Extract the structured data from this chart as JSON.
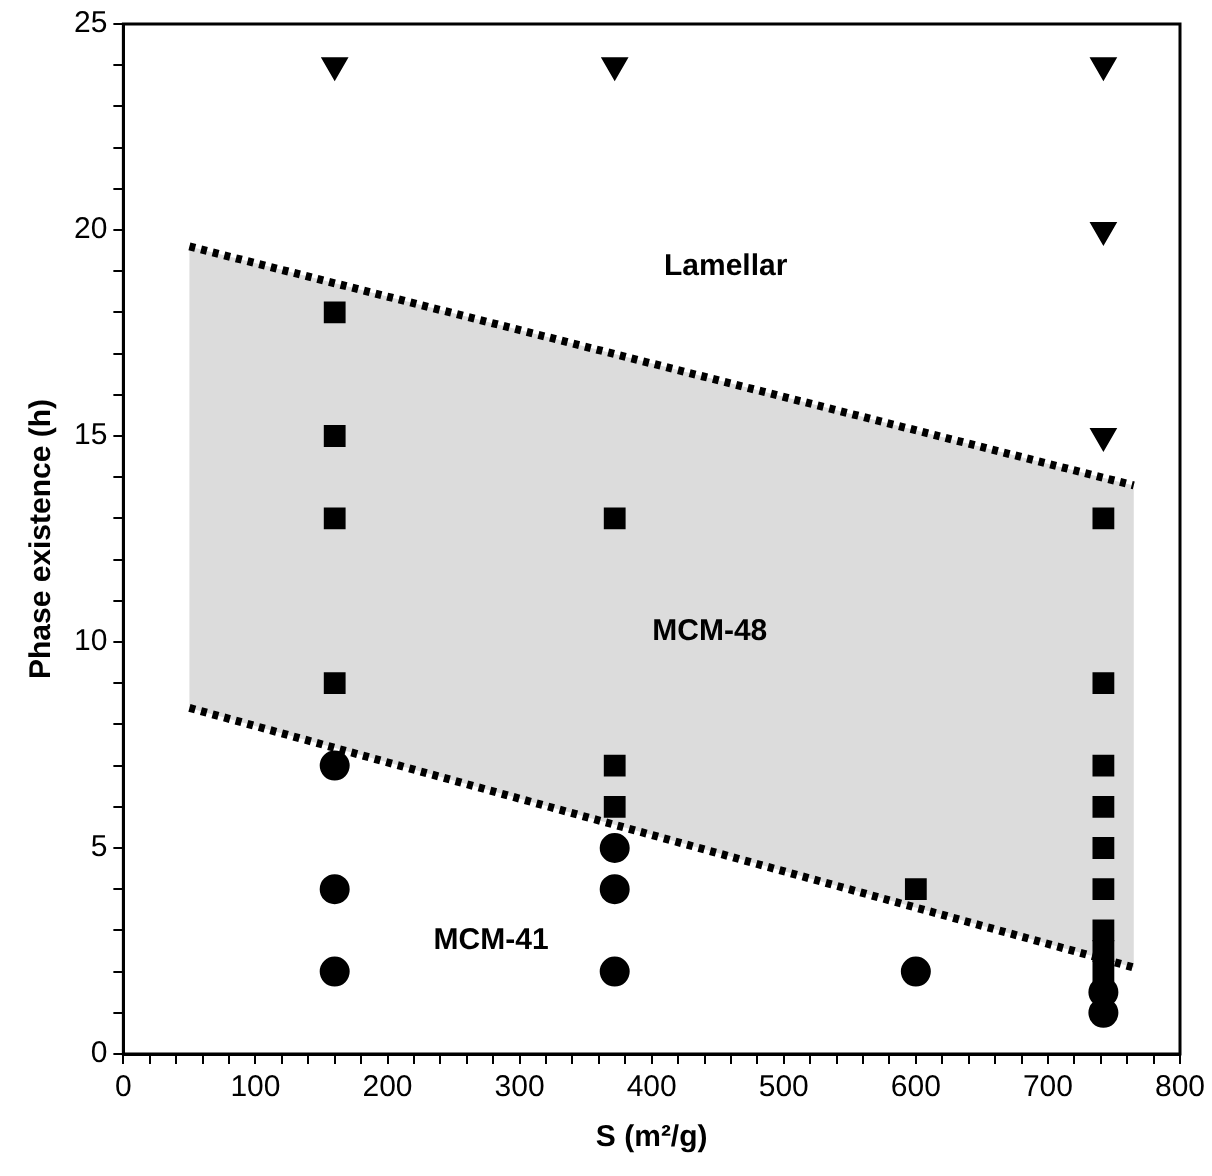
{
  "chart_data": {
    "type": "scatter",
    "xlabel": "S (m²/g)",
    "ylabel": "Phase existence (h)",
    "xlim": [
      0,
      800
    ],
    "ylim": [
      0,
      25
    ],
    "xticks": [
      0,
      {
        "value": 20,
        "label": null
      },
      {
        "value": 40,
        "label": null
      },
      {
        "value": 60,
        "label": null
      },
      {
        "value": 80,
        "label": null
      },
      100,
      {
        "value": 120,
        "label": null
      },
      {
        "value": 140,
        "label": null
      },
      {
        "value": 160,
        "label": null
      },
      {
        "value": 180,
        "label": null
      },
      200,
      {
        "value": 220,
        "label": null
      },
      {
        "value": 240,
        "label": null
      },
      {
        "value": 260,
        "label": null
      },
      {
        "value": 280,
        "label": null
      },
      300,
      {
        "value": 320,
        "label": null
      },
      {
        "value": 340,
        "label": null
      },
      {
        "value": 360,
        "label": null
      },
      {
        "value": 380,
        "label": null
      },
      400,
      {
        "value": 420,
        "label": null
      },
      {
        "value": 440,
        "label": null
      },
      {
        "value": 460,
        "label": null
      },
      {
        "value": 480,
        "label": null
      },
      500,
      {
        "value": 520,
        "label": null
      },
      {
        "value": 540,
        "label": null
      },
      {
        "value": 560,
        "label": null
      },
      {
        "value": 580,
        "label": null
      },
      600,
      {
        "value": 620,
        "label": null
      },
      {
        "value": 640,
        "label": null
      },
      {
        "value": 660,
        "label": null
      },
      {
        "value": 680,
        "label": null
      },
      700,
      {
        "value": 720,
        "label": null
      },
      {
        "value": 740,
        "label": null
      },
      {
        "value": 760,
        "label": null
      },
      {
        "value": 780,
        "label": null
      },
      800
    ],
    "yticks": [
      0,
      {
        "value": 1,
        "label": null
      },
      {
        "value": 2,
        "label": null
      },
      {
        "value": 3,
        "label": null
      },
      {
        "value": 4,
        "label": null
      },
      5,
      {
        "value": 6,
        "label": null
      },
      {
        "value": 7,
        "label": null
      },
      {
        "value": 8,
        "label": null
      },
      {
        "value": 9,
        "label": null
      },
      10,
      {
        "value": 11,
        "label": null
      },
      {
        "value": 12,
        "label": null
      },
      {
        "value": 13,
        "label": null
      },
      {
        "value": 14,
        "label": null
      },
      15,
      {
        "value": 16,
        "label": null
      },
      {
        "value": 17,
        "label": null
      },
      {
        "value": 18,
        "label": null
      },
      {
        "value": 19,
        "label": null
      },
      20,
      {
        "value": 21,
        "label": null
      },
      {
        "value": 22,
        "label": null
      },
      {
        "value": 23,
        "label": null
      },
      {
        "value": 24,
        "label": null
      },
      25
    ],
    "grid": false,
    "legend": false,
    "series": [
      {
        "type": "line",
        "color": "#000000",
        "line_style": "dotted",
        "marker": "none",
        "x": [
          50,
          765
        ],
        "values": [
          19.6,
          13.8
        ],
        "lower": [
          8.4,
          2.1
        ],
        "upper": [
          19.6,
          13.8
        ]
      },
      {
        "type": "line",
        "color": "#000000",
        "line_style": "dotted",
        "marker": "none",
        "x": [
          50,
          765
        ],
        "values": [
          8.4,
          2.1
        ]
      },
      {
        "type": "scatter",
        "color": "#000000",
        "marker": "triangle",
        "x": [
          160,
          372,
          742,
          742,
          742
        ],
        "values": [
          24,
          24,
          24,
          20,
          15
        ]
      },
      {
        "type": "scatter",
        "color": "#000000",
        "marker": "square",
        "x": [
          160,
          160,
          160,
          160,
          372,
          372,
          372,
          600,
          742,
          742,
          742,
          742,
          742,
          742,
          742,
          742,
          742
        ],
        "values": [
          18,
          15,
          13,
          9,
          13,
          7,
          6,
          4,
          13,
          9,
          7,
          6,
          5,
          4,
          3,
          2.5,
          2
        ]
      },
      {
        "type": "scatter",
        "color": "#000000",
        "marker": "circle",
        "x": [
          160,
          160,
          160,
          372,
          372,
          372,
          600,
          742,
          742
        ],
        "values": [
          7,
          4,
          2,
          5,
          4,
          2,
          2,
          1.5,
          1
        ]
      }
    ],
    "annotations": [
      "Lamellar",
      "MCM-48",
      "MCM-41"
    ]
  }
}
